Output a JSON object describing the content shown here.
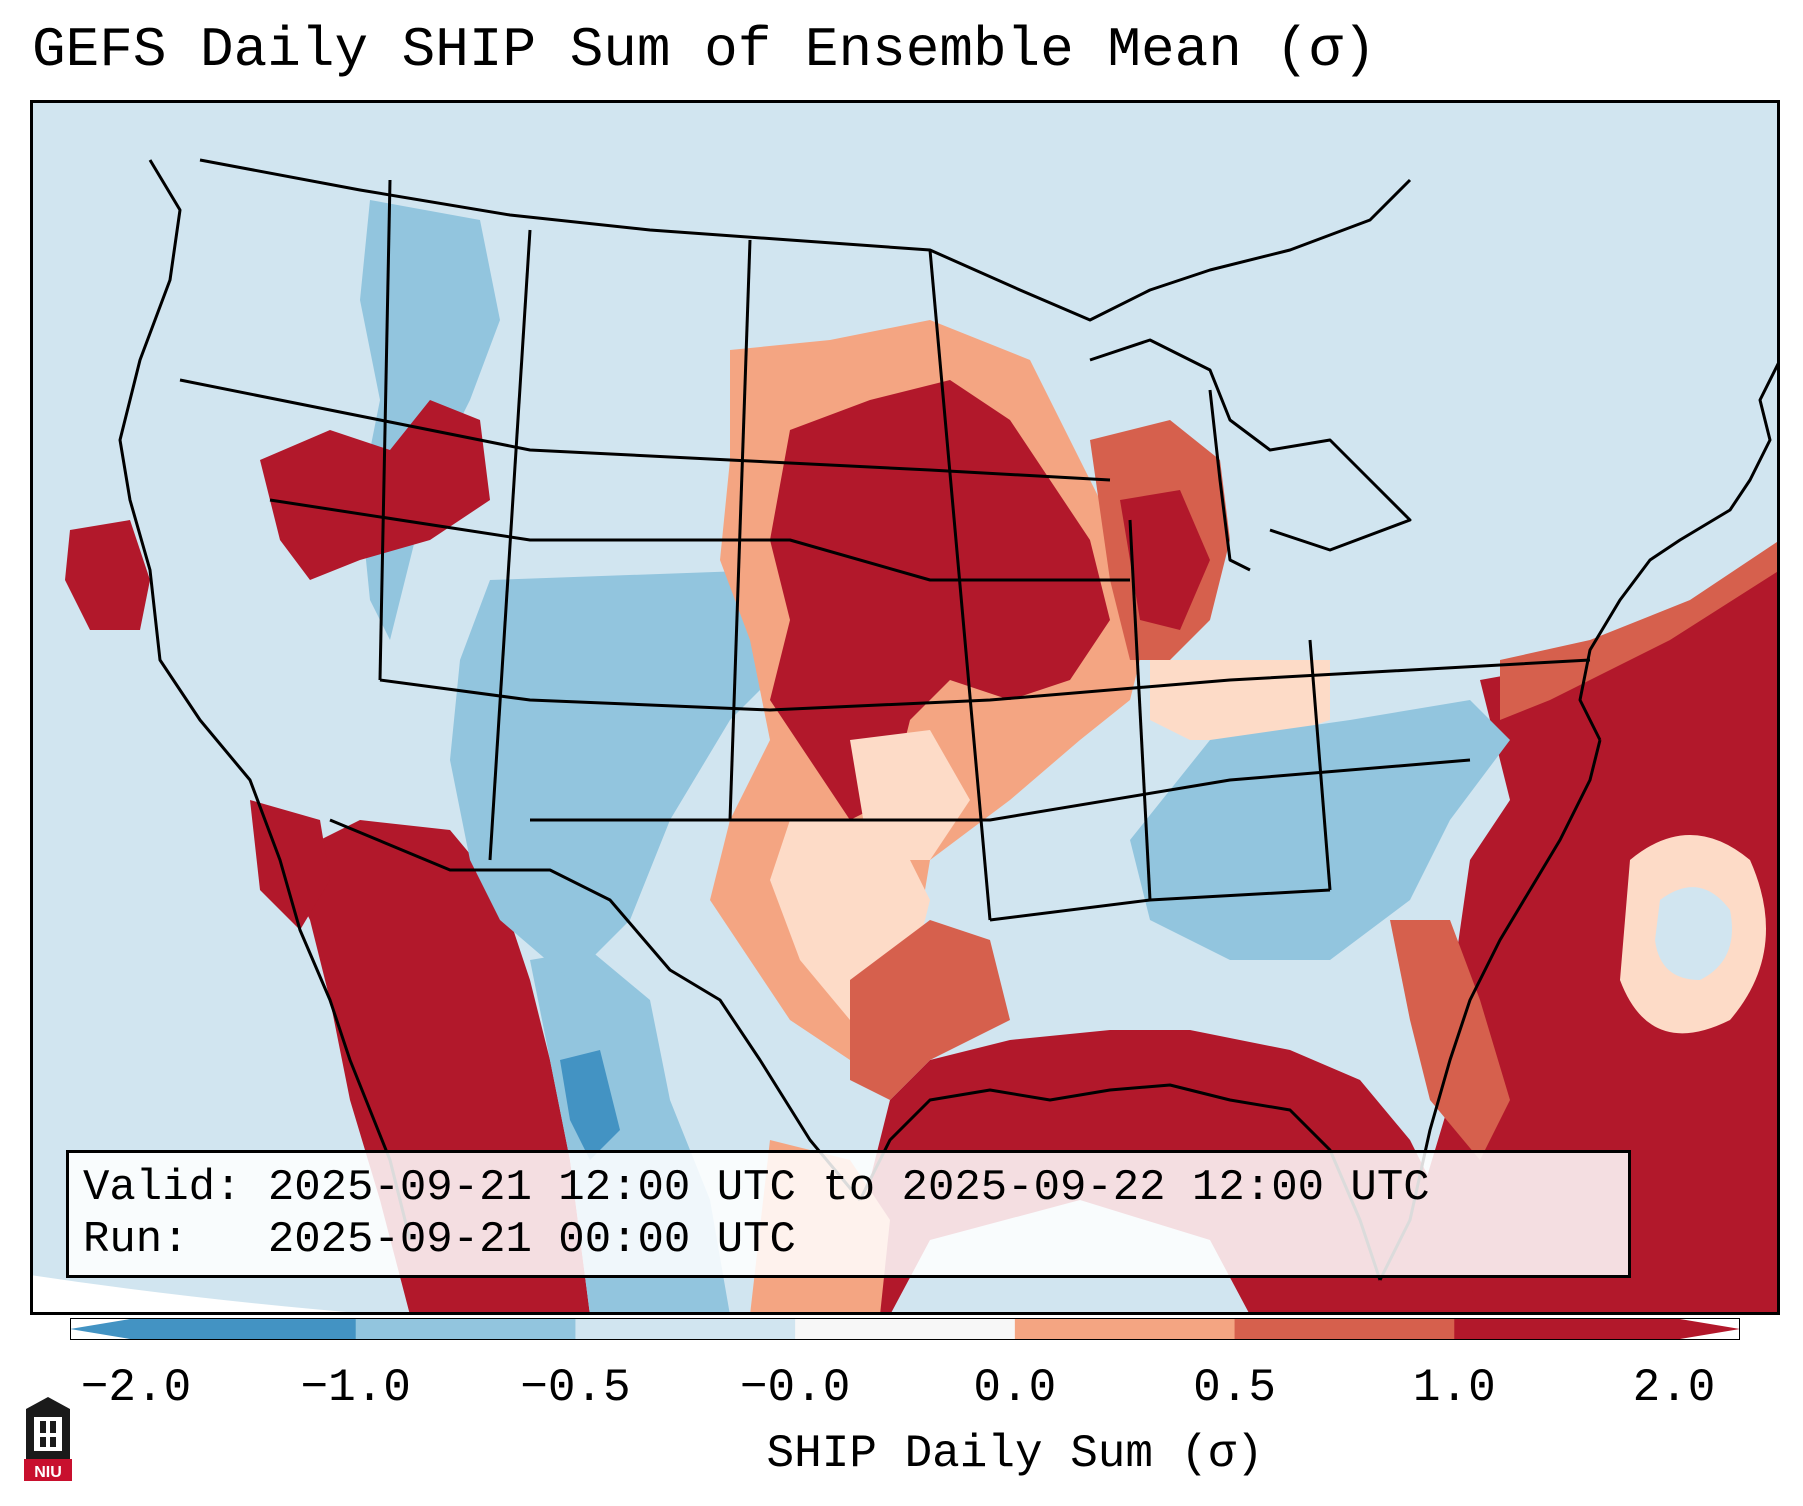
{
  "title": "GEFS Daily SHIP Sum of Ensemble Mean (σ)",
  "info": {
    "valid_label": "Valid:",
    "valid_value": "2025-09-21 12:00 UTC to 2025-09-22 12:00 UTC",
    "run_label": "Run:",
    "run_value": "2025-09-21 00:00 UTC"
  },
  "colorbar": {
    "label": "SHIP Daily Sum (σ)",
    "ticks": [
      "−2.0",
      "−1.0",
      "−0.5",
      "−0.0",
      "0.0",
      "0.5",
      "1.0",
      "2.0"
    ],
    "colors": [
      "#4393c3",
      "#92c5de",
      "#d1e5f0",
      "#f7f7f7",
      "#fddbc7",
      "#f4a582",
      "#d6604d",
      "#b2182b"
    ]
  },
  "logo": {
    "icon": "niu-university-logo-icon",
    "text": "NIU"
  }
}
